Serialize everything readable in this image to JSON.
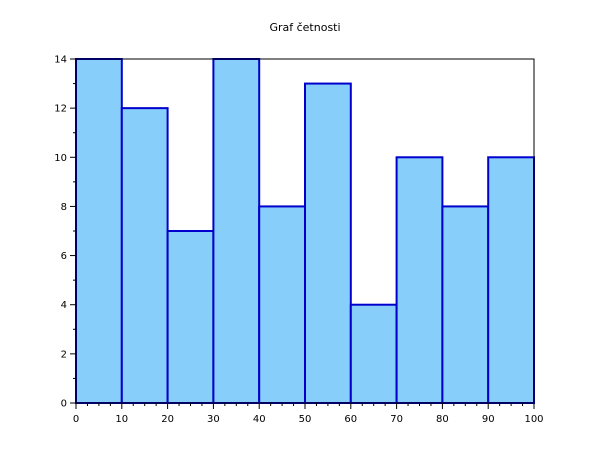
{
  "chart_data": {
    "type": "bar",
    "title": "Graf četnosti",
    "xlabel": "",
    "ylabel": "",
    "bin_edges": [
      0,
      10,
      20,
      30,
      40,
      50,
      60,
      70,
      80,
      90,
      100
    ],
    "values": [
      14,
      12,
      7,
      14,
      8,
      13,
      4,
      10,
      8,
      10
    ],
    "xlim": [
      0,
      100
    ],
    "ylim": [
      0,
      14
    ],
    "x_ticks": [
      "0",
      "10",
      "20",
      "30",
      "40",
      "50",
      "60",
      "70",
      "80",
      "90",
      "100"
    ],
    "y_ticks": [
      "0",
      "2",
      "4",
      "6",
      "8",
      "10",
      "12",
      "14"
    ],
    "grid": false,
    "legend": "none",
    "colors": {
      "bar_fill": "#87cefa",
      "bar_stroke": "#0000cd",
      "axis": "#000000"
    }
  }
}
